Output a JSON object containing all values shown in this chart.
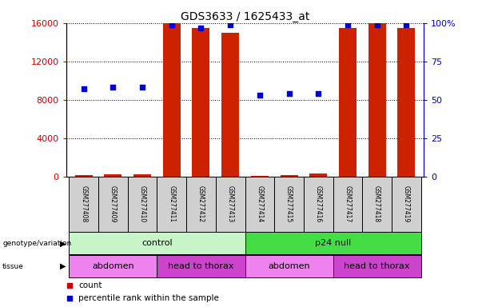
{
  "title": "GDS3633 / 1625433_at",
  "samples": [
    "GSM277408",
    "GSM277409",
    "GSM277410",
    "GSM277411",
    "GSM277412",
    "GSM277413",
    "GSM277414",
    "GSM277415",
    "GSM277416",
    "GSM277417",
    "GSM277418",
    "GSM277419"
  ],
  "counts": [
    150,
    200,
    250,
    16000,
    15500,
    15000,
    100,
    150,
    300,
    15500,
    16000,
    15500
  ],
  "percentile": [
    57,
    58,
    58,
    99,
    97,
    99,
    53,
    54,
    54,
    99,
    99,
    99
  ],
  "ylim_left": [
    0,
    16000
  ],
  "ylim_right": [
    0,
    100
  ],
  "yticks_left": [
    0,
    4000,
    8000,
    12000,
    16000
  ],
  "yticks_right": [
    0,
    25,
    50,
    75,
    100
  ],
  "genotype_groups": [
    {
      "label": "control",
      "start": 0,
      "end": 6,
      "color": "#c8f5c8"
    },
    {
      "label": "p24 null",
      "start": 6,
      "end": 12,
      "color": "#44dd44"
    }
  ],
  "tissue_groups": [
    {
      "label": "abdomen",
      "start": 0,
      "end": 3,
      "color": "#ee82ee"
    },
    {
      "label": "head to thorax",
      "start": 3,
      "end": 6,
      "color": "#cc44cc"
    },
    {
      "label": "abdomen",
      "start": 6,
      "end": 9,
      "color": "#ee82ee"
    },
    {
      "label": "head to thorax",
      "start": 9,
      "end": 12,
      "color": "#cc44cc"
    }
  ],
  "bar_color": "#cc2200",
  "dot_color": "#0000cc",
  "tick_color_left": "#cc0000",
  "tick_color_right": "#0000cc",
  "sample_box_color": "#d0d0d0",
  "legend_count_color": "#cc0000",
  "legend_pct_color": "#0000cc"
}
